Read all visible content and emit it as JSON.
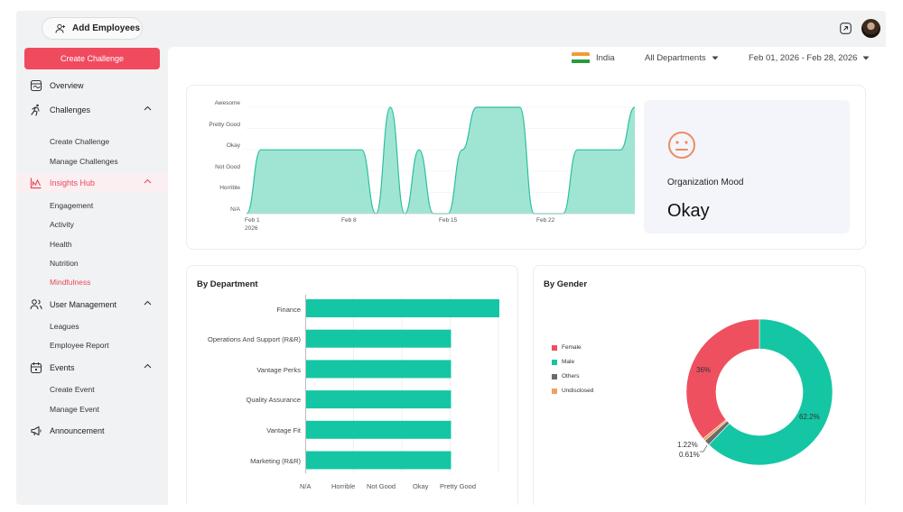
{
  "header": {
    "add_employees": "Add Employees"
  },
  "sidebar": {
    "create_challenge": "Create Challenge",
    "items": [
      {
        "label": "Overview",
        "icon": "overview-icon"
      },
      {
        "label": "Challenges",
        "icon": "runner-icon"
      },
      {
        "label": "Insights Hub",
        "icon": "chart-icon"
      },
      {
        "label": "User Management",
        "icon": "users-icon"
      },
      {
        "label": "Events",
        "icon": "calendar-icon"
      },
      {
        "label": "Announcement",
        "icon": "megaphone-icon"
      }
    ],
    "challenges_sub": [
      "Create Challenge",
      "Manage Challenges"
    ],
    "insights_sub": [
      "Engagement",
      "Activity",
      "Health",
      "Nutrition",
      "Mindfulness"
    ],
    "users_sub": [
      "Leagues",
      "Employee Report"
    ],
    "events_sub": [
      "Create Event",
      "Manage Event"
    ]
  },
  "filters": {
    "country": "India",
    "department": "All Departments",
    "date_range": "Feb 01, 2026 - Feb 28, 2026"
  },
  "mood_chart": {
    "y_labels": [
      "Awesome",
      "Pretty Good",
      "Okay",
      "Not Good",
      "Horrible",
      "N/A"
    ],
    "x_labels": [
      "Feb 1",
      "Feb 8",
      "Feb 15",
      "Feb 22"
    ],
    "x_year": "2026",
    "color": "#8fe0cc",
    "line_color": "#2cbf9e"
  },
  "mood_summary": {
    "title": "Organization Mood",
    "value": "Okay",
    "icon": "neutral-face-icon",
    "icon_color": "#ef8a63"
  },
  "department": {
    "title": "By Department",
    "color": "#14c6a4",
    "x_labels": [
      "N/A",
      "Horrible",
      "Not Good",
      "Okay",
      "Pretty Good"
    ],
    "rows": [
      {
        "name": "Finance",
        "value": "Pretty Good"
      },
      {
        "name": "Operations And Support (R&R)",
        "value": "Okay"
      },
      {
        "name": "Vantage Perks",
        "value": "Okay"
      },
      {
        "name": "Quality Assurance",
        "value": "Okay"
      },
      {
        "name": "Vantage Fit",
        "value": "Okay"
      },
      {
        "name": "Marketing (R&R)",
        "value": "Okay"
      }
    ]
  },
  "gender": {
    "title": "By Gender",
    "legend": [
      {
        "label": "Female",
        "color": "#ef5060"
      },
      {
        "label": "Male",
        "color": "#14c6a4"
      },
      {
        "label": "Others",
        "color": "#6b6b6b"
      },
      {
        "label": "Undisclosed",
        "color": "#f0a060"
      }
    ],
    "labels": {
      "female": "36%",
      "male": "62.2%",
      "others": "1.22%",
      "undisclosed": "0.61%"
    }
  },
  "chart_data": [
    {
      "type": "area",
      "title": "",
      "y_categories": [
        "N/A",
        "Horrible",
        "Not Good",
        "Okay",
        "Pretty Good",
        "Awesome"
      ],
      "x": [
        "Feb 1",
        "Feb 2",
        "Feb 3",
        "Feb 4",
        "Feb 5",
        "Feb 6",
        "Feb 7",
        "Feb 8",
        "Feb 9",
        "Feb 10",
        "Feb 11",
        "Feb 12",
        "Feb 13",
        "Feb 14",
        "Feb 15",
        "Feb 16",
        "Feb 17",
        "Feb 18",
        "Feb 19",
        "Feb 20",
        "Feb 21",
        "Feb 22",
        "Feb 23",
        "Feb 24",
        "Feb 25",
        "Feb 26",
        "Feb 27",
        "Feb 28"
      ],
      "values": [
        0,
        3,
        3,
        3,
        3,
        3,
        3,
        3,
        3,
        0,
        5,
        0,
        3,
        0,
        0,
        3,
        5,
        5,
        5,
        5,
        0,
        0,
        0,
        3,
        3,
        3,
        3,
        5
      ]
    },
    {
      "type": "bar",
      "title": "By Department",
      "categories": [
        "Finance",
        "Operations And Support (R&R)",
        "Vantage Perks",
        "Quality Assurance",
        "Vantage Fit",
        "Marketing (R&R)"
      ],
      "values": [
        4,
        3,
        3,
        3,
        3,
        3
      ],
      "x_ticks": [
        "N/A",
        "Horrible",
        "Not Good",
        "Okay",
        "Pretty Good"
      ]
    },
    {
      "type": "pie",
      "title": "By Gender",
      "categories": [
        "Female",
        "Male",
        "Others",
        "Undisclosed"
      ],
      "values": [
        36,
        62.2,
        1.22,
        0.61
      ]
    }
  ]
}
